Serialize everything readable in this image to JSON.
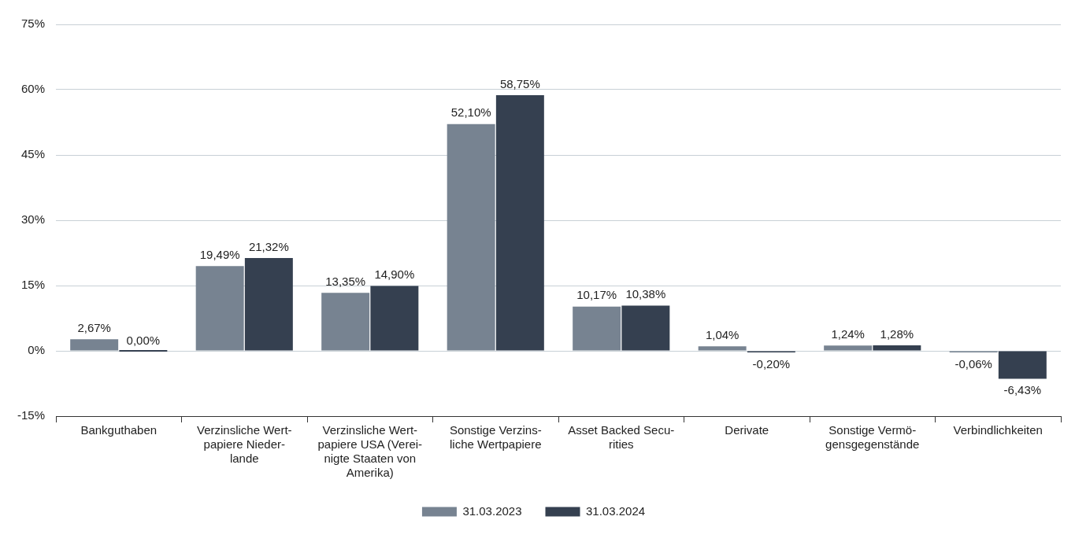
{
  "chart_data": {
    "type": "bar",
    "categories": [
      "Bankguthaben",
      "Verzinsliche Wert-\npapiere Nieder-\nlande",
      "Verzinsliche Wert-\npapiere USA (Verei-\nnigte Staaten von\nAmerika)",
      "Sonstige Verzins-\nliche Wertpapiere",
      "Asset Backed Secu-\nrities",
      "Derivate",
      "Sonstige Vermö-\ngensgegenstände",
      "Verbindlichkeiten"
    ],
    "series": [
      {
        "name": "31.03.2023",
        "color": "#778391",
        "values": [
          2.67,
          19.49,
          13.35,
          52.1,
          10.17,
          1.04,
          1.24,
          -0.06
        ],
        "value_labels": [
          "2,67%",
          "19,49%",
          "13,35%",
          "52,10%",
          "10,17%",
          "1,04%",
          "1,24%",
          "-0,06%"
        ]
      },
      {
        "name": "31.03.2024",
        "color": "#354050",
        "values": [
          0.0,
          21.32,
          14.9,
          58.75,
          10.38,
          -0.2,
          1.28,
          -6.43
        ],
        "value_labels": [
          "0,00%",
          "21,32%",
          "14,90%",
          "58,75%",
          "10,38%",
          "-0,20%",
          "1,28%",
          "-6,43%"
        ]
      }
    ],
    "ylim": [
      -15,
      75
    ],
    "yticks": [
      {
        "value": -15,
        "label": "-15%"
      },
      {
        "value": 0,
        "label": "0%"
      },
      {
        "value": 15,
        "label": "15%"
      },
      {
        "value": 30,
        "label": "30%"
      },
      {
        "value": 45,
        "label": "45%"
      },
      {
        "value": 60,
        "label": "60%"
      },
      {
        "value": 75,
        "label": "75%"
      }
    ],
    "grid": "y",
    "legend": "bottom"
  }
}
